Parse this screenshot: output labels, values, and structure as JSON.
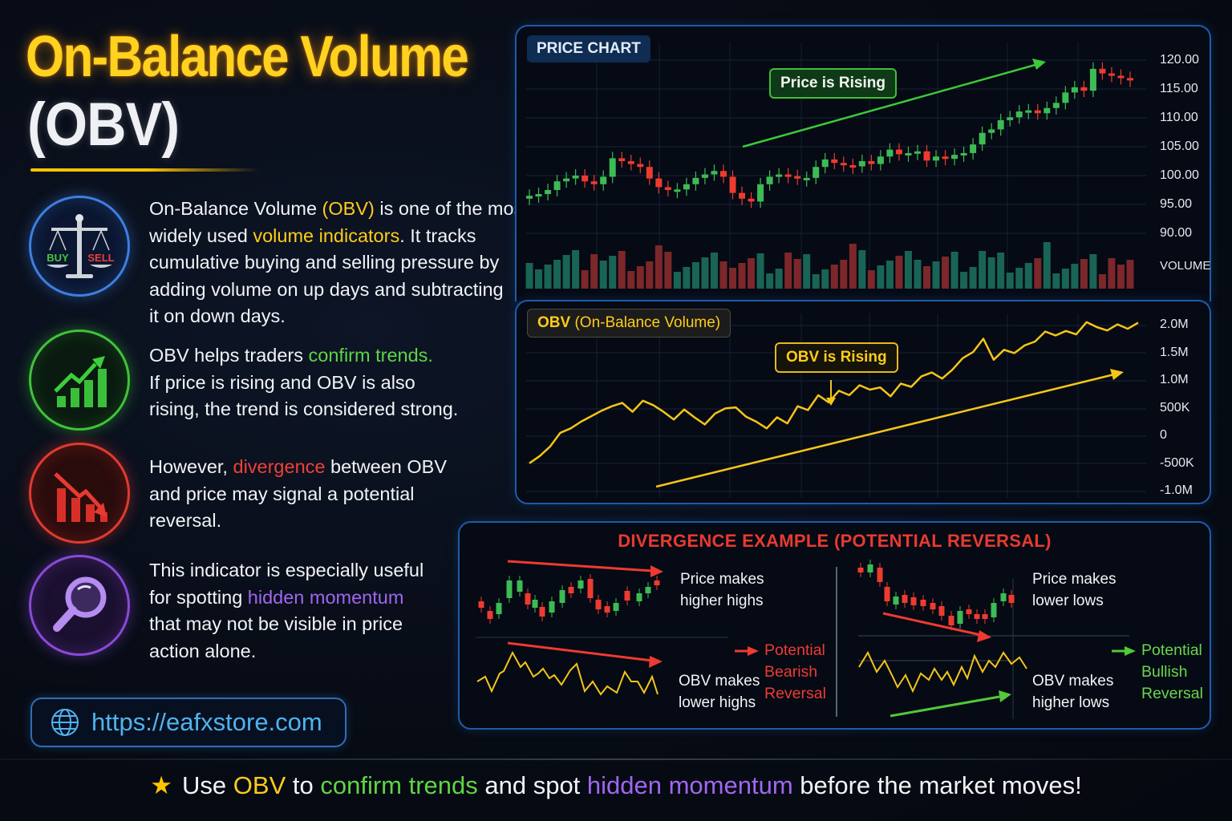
{
  "title": {
    "line1": "On-Balance Volume",
    "line2": "(OBV)"
  },
  "features": [
    {
      "icon": "scale-buy-sell-icon",
      "icon_labels": {
        "buy": "BUY",
        "sell": "SELL"
      },
      "lines": [
        [
          {
            "t": "On-Balance Volume "
          },
          {
            "t": "(OBV)",
            "c": "yellow"
          },
          {
            "t": " is one of the most"
          }
        ],
        [
          {
            "t": "widely used "
          },
          {
            "t": "volume indicators",
            "c": "yellow"
          },
          {
            "t": ". It tracks"
          }
        ],
        [
          {
            "t": "cumulative buying and selling pressure by"
          }
        ],
        [
          {
            "t": "adding volume on up days and subtracting"
          }
        ],
        [
          {
            "t": "it on down days."
          }
        ]
      ]
    },
    {
      "icon": "growth-chart-icon",
      "lines": [
        [
          {
            "t": "OBV helps traders "
          },
          {
            "t": "confirm trends.",
            "c": "green"
          }
        ],
        [
          {
            "t": "If price is rising and OBV is also"
          }
        ],
        [
          {
            "t": "rising, the trend is considered strong."
          }
        ]
      ]
    },
    {
      "icon": "decline-chart-icon",
      "lines": [
        [
          {
            "t": "However, "
          },
          {
            "t": "divergence",
            "c": "red"
          },
          {
            "t": " between OBV"
          }
        ],
        [
          {
            "t": "and price may signal a potential"
          }
        ],
        [
          {
            "t": "reversal."
          }
        ]
      ]
    },
    {
      "icon": "magnifier-icon",
      "lines": [
        [
          {
            "t": "This indicator is especially useful"
          }
        ],
        [
          {
            "t": "for spotting "
          },
          {
            "t": "hidden momentum",
            "c": "purple"
          }
        ],
        [
          {
            "t": "that may not be visible in price"
          }
        ],
        [
          {
            "t": "action alone."
          }
        ]
      ]
    }
  ],
  "website": {
    "url": "https://eafxstore.com"
  },
  "price_panel": {
    "label": "PRICE CHART",
    "badge": "Price is Rising",
    "y_ticks": [
      "120.00",
      "115.00",
      "110.00",
      "105.00",
      "100.00",
      "95.00",
      "90.00"
    ],
    "volume_label": "VOLUME"
  },
  "obv_panel": {
    "label_bold": "OBV",
    "label_rest": " (On-Balance Volume)",
    "badge": "OBV is Rising",
    "y_ticks": [
      "2.0M",
      "1.5M",
      "1.0M",
      "500K",
      "0",
      "-500K",
      "-1.0M"
    ]
  },
  "divergence": {
    "title": "DIVERGENCE EXAMPLE (POTENTIAL REVERSAL)",
    "bearish": {
      "price_text": [
        "Price makes",
        "higher highs"
      ],
      "obv_text": [
        "OBV makes",
        "lower highs"
      ],
      "result": [
        "Potential",
        "Bearish",
        "Reversal"
      ]
    },
    "bullish": {
      "price_text": [
        "Price makes",
        "lower lows"
      ],
      "obv_text": [
        "OBV makes",
        "higher lows"
      ],
      "result": [
        "Potential",
        "Bullish",
        "Reversal"
      ]
    }
  },
  "footer": {
    "parts": [
      {
        "t": "Use "
      },
      {
        "t": "OBV",
        "c": "yellow"
      },
      {
        "t": " to "
      },
      {
        "t": "confirm trends",
        "c": "green"
      },
      {
        "t": " and spot "
      },
      {
        "t": "hidden momentum",
        "c": "purple"
      },
      {
        "t": " before the market moves!"
      }
    ]
  },
  "colors": {
    "yellow": "#ffcc1a",
    "green": "#5ed545",
    "red": "#f04038",
    "purple": "#a066f0",
    "bull_candle": "#3dbb55",
    "bear_candle": "#ee3b30",
    "obv_line": "#f5c518",
    "panel_border": "#1e5ba8"
  },
  "chart_data": [
    {
      "type": "candlestick",
      "title": "PRICE CHART",
      "annotation": "Price is Rising",
      "ylabel": "",
      "ylim": [
        88,
        122
      ],
      "y_ticks": [
        120,
        115,
        110,
        105,
        100,
        95,
        90
      ],
      "grid": true,
      "close_approx": [
        96.5,
        96.8,
        97.5,
        99,
        99.5,
        100,
        99,
        98.5,
        99.8,
        103,
        102.5,
        102,
        101.5,
        99.5,
        98,
        97.5,
        97.6,
        98.5,
        99.6,
        100.2,
        100.8,
        99.8,
        97,
        96,
        95.5,
        98.5,
        99.8,
        100.2,
        99.9,
        99.5,
        99.6,
        101.5,
        102.8,
        102.2,
        101.8,
        101.6,
        102.5,
        102,
        103.3,
        104.5,
        103.7,
        103.9,
        104.2,
        102.6,
        103.3,
        102.9,
        103.6,
        103.9,
        105.4,
        107.4,
        108,
        109.6,
        110.1,
        111.1,
        111.3,
        110.8,
        111.7,
        112.6,
        114.4,
        115.3,
        114.7,
        118.5,
        117.7,
        117.3,
        116.9,
        116.6
      ],
      "volume_note": "volume histogram below price, green=up day, red=down day"
    },
    {
      "type": "line",
      "title": "OBV (On-Balance Volume)",
      "annotation": "OBV is Rising",
      "ylim": [
        -1000000,
        2000000
      ],
      "y_ticks": [
        "2.0M",
        "1.5M",
        "1.0M",
        "500K",
        "0",
        "-500K",
        "-1.0M"
      ],
      "x": [
        0,
        1,
        2,
        3,
        4,
        5,
        6,
        7,
        8,
        9,
        10,
        11,
        12,
        13,
        14,
        15,
        16,
        17,
        18,
        19,
        20,
        21,
        22,
        23,
        24,
        25,
        26,
        27,
        28,
        29,
        30,
        31,
        32,
        33,
        34,
        35,
        36,
        37,
        38,
        39,
        40,
        41,
        42,
        43,
        44,
        45,
        46,
        47,
        48,
        49,
        50,
        51,
        52,
        53,
        54,
        55,
        56,
        57,
        58,
        59
      ],
      "values": [
        -750000,
        -620000,
        -450000,
        -200000,
        -120000,
        0,
        100000,
        200000,
        280000,
        340000,
        180000,
        380000,
        300000,
        180000,
        40000,
        220000,
        80000,
        -50000,
        150000,
        240000,
        260000,
        90000,
        0,
        -120000,
        80000,
        -30000,
        280000,
        210000,
        480000,
        350000,
        560000,
        480000,
        660000,
        580000,
        620000,
        460000,
        690000,
        630000,
        820000,
        890000,
        780000,
        940000,
        1150000,
        1260000,
        1500000,
        1120000,
        1300000,
        1240000,
        1380000,
        1450000,
        1630000,
        1560000,
        1640000,
        1580000,
        1800000,
        1710000,
        1650000,
        1760000,
        1680000,
        1790000
      ],
      "trendline": "rising arrow from low-left to upper-right"
    }
  ]
}
